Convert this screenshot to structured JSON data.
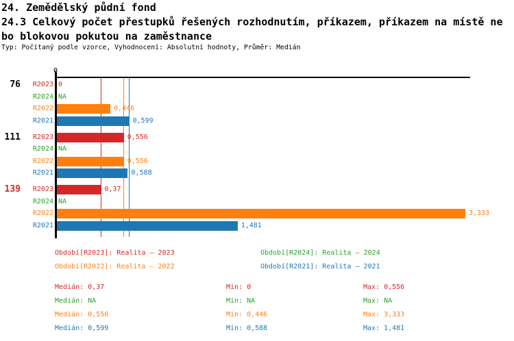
{
  "header": {
    "title_line1": "24. Zemědělský půdní fond",
    "title_line2": "24.3 Celkový počet přestupků řešených rozhodnutím, příkazem, příkazem na místě ne",
    "title_line3": "bo blokovou pokutou na zaměstnance",
    "subtitle": "Typ: Počítaný podle vzorce, Vyhodnocení: Absolutní hodnoty, Průměr: Medián"
  },
  "colors": {
    "R2023": "#d62728",
    "R2024": "#2ca02c",
    "R2022": "#ff7f0e",
    "R2021": "#1f77b4",
    "axis": "#000000",
    "group_label_normal": "#000000",
    "group_label_alert": "#d62728"
  },
  "chart_data": {
    "type": "bar",
    "orientation": "horizontal",
    "value_axis": {
      "zero_label": "0",
      "max": 3.4,
      "gridlines": false
    },
    "series_order": [
      "R2023",
      "R2024",
      "R2022",
      "R2021"
    ],
    "groups": [
      {
        "label": "76",
        "label_alert": false,
        "bars": [
          {
            "series": "R2023",
            "value": 0,
            "display": "0"
          },
          {
            "series": "R2024",
            "value": null,
            "display": "NA"
          },
          {
            "series": "R2022",
            "value": 0.446,
            "display": "0,446"
          },
          {
            "series": "R2021",
            "value": 0.599,
            "display": "0,599"
          }
        ]
      },
      {
        "label": "111",
        "label_alert": false,
        "bars": [
          {
            "series": "R2023",
            "value": 0.556,
            "display": "0,556"
          },
          {
            "series": "R2024",
            "value": null,
            "display": "NA"
          },
          {
            "series": "R2022",
            "value": 0.556,
            "display": "0,556"
          },
          {
            "series": "R2021",
            "value": 0.588,
            "display": "0,588"
          }
        ]
      },
      {
        "label": "139",
        "label_alert": true,
        "bars": [
          {
            "series": "R2023",
            "value": 0.37,
            "display": "0,37"
          },
          {
            "series": "R2024",
            "value": null,
            "display": "NA"
          },
          {
            "series": "R2022",
            "value": 3.333,
            "display": "3,333"
          },
          {
            "series": "R2021",
            "value": 1.481,
            "display": "1,481"
          }
        ]
      }
    ],
    "median_lines": [
      {
        "series": "R2023",
        "value": 0.37
      },
      {
        "series": "R2022",
        "value": 0.556
      },
      {
        "series": "R2021",
        "value": 0.599
      }
    ]
  },
  "legend": {
    "items": [
      {
        "series": "R2023",
        "label": "Období[R2023]: Realita – 2023"
      },
      {
        "series": "R2024",
        "label": "Období[R2024]: Realita – 2024"
      },
      {
        "series": "R2022",
        "label": "Období[R2022]: Realita – 2022"
      },
      {
        "series": "R2021",
        "label": "Období[R2021]: Realita – 2021"
      }
    ]
  },
  "stats": {
    "rows": [
      {
        "series": "R2023",
        "median": "Medián: 0,37",
        "min": "Min: 0",
        "max": "Max: 0,556"
      },
      {
        "series": "R2024",
        "median": "Medián: NA",
        "min": "Min: NA",
        "max": "Max: NA"
      },
      {
        "series": "R2022",
        "median": "Medián: 0,556",
        "min": "Min: 0,446",
        "max": "Max: 3,333"
      },
      {
        "series": "R2021",
        "median": "Medián: 0,599",
        "min": "Min: 0,588",
        "max": "Max: 1,481"
      }
    ]
  }
}
